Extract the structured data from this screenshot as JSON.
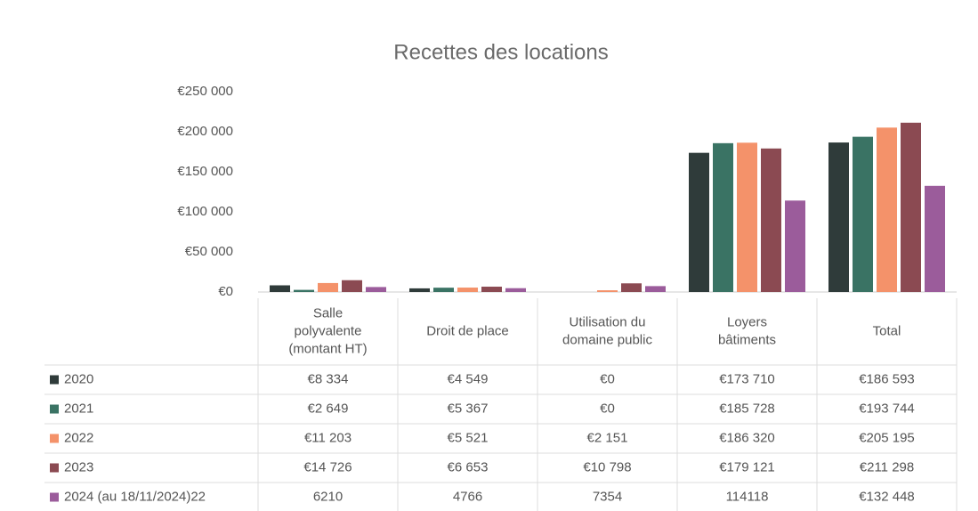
{
  "chart_data": {
    "type": "bar",
    "title": "Recettes des locations",
    "categories": [
      "Salle polyvalente (montant HT)",
      "Droit de place",
      "Utilisation du domaine public",
      "Loyers bâtiments",
      "Total"
    ],
    "series": [
      {
        "name": "2020",
        "color": "#2f3b3a",
        "values": [
          8334,
          4549,
          0,
          173710,
          186593
        ],
        "value_labels": [
          "€8 334",
          "€4 549",
          "€0",
          "€173 710",
          "€186 593"
        ]
      },
      {
        "name": "2021",
        "color": "#3a7364",
        "values": [
          2649,
          5367,
          0,
          185728,
          193744
        ],
        "value_labels": [
          "€2 649",
          "€5 367",
          "€0",
          "€185 728",
          "€193 744"
        ]
      },
      {
        "name": "2022",
        "color": "#f4926a",
        "values": [
          11203,
          5521,
          2151,
          186320,
          205195
        ],
        "value_labels": [
          "€11 203",
          "€5 521",
          "€2 151",
          "€186 320",
          "€205 195"
        ]
      },
      {
        "name": "2023",
        "color": "#8b4a52",
        "values": [
          14726,
          6653,
          10798,
          179121,
          211298
        ],
        "value_labels": [
          "€14 726",
          "€6 653",
          "€10 798",
          "€179 121",
          "€211 298"
        ]
      },
      {
        "name": "2024 (au 18/11/2024)22",
        "color": "#9b5c9b",
        "values": [
          6210,
          4766,
          7354,
          114118,
          132448
        ],
        "value_labels": [
          "6210",
          "4766",
          "7354",
          "114118",
          "€132 448"
        ]
      }
    ],
    "ylim": [
      0,
      250000
    ],
    "yticks": [
      {
        "value": 0,
        "label": "€0"
      },
      {
        "value": 50000,
        "label": "€50 000"
      },
      {
        "value": 100000,
        "label": "€100 000"
      },
      {
        "value": 150000,
        "label": "€150 000"
      },
      {
        "value": 200000,
        "label": "€200 000"
      },
      {
        "value": 250000,
        "label": "€250 000"
      }
    ],
    "grid": false
  }
}
